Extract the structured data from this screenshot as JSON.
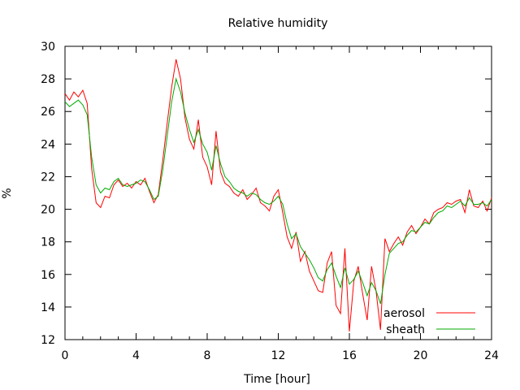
{
  "chart_data": {
    "type": "line",
    "title": "Relative humidity",
    "xlabel": "Time [hour]",
    "ylabel": "%",
    "xlim": [
      0,
      24
    ],
    "ylim": [
      12,
      30
    ],
    "xticks": [
      0,
      4,
      8,
      12,
      16,
      20,
      24
    ],
    "yticks": [
      12,
      14,
      16,
      18,
      20,
      22,
      24,
      26,
      28,
      30
    ],
    "grid": false,
    "legend_position": "bottom-right",
    "series": [
      {
        "name": "aerosol",
        "color": "#ff0000",
        "x": [
          0,
          0.25,
          0.5,
          0.75,
          1,
          1.25,
          1.5,
          1.75,
          2,
          2.25,
          2.5,
          2.75,
          3,
          3.25,
          3.5,
          3.75,
          4,
          4.25,
          4.5,
          4.75,
          5,
          5.25,
          5.5,
          5.75,
          6,
          6.25,
          6.5,
          6.75,
          7,
          7.25,
          7.5,
          7.75,
          8,
          8.25,
          8.5,
          8.75,
          9,
          9.25,
          9.5,
          9.75,
          10,
          10.25,
          10.5,
          10.75,
          11,
          11.25,
          11.5,
          11.75,
          12,
          12.25,
          12.5,
          12.75,
          13,
          13.25,
          13.5,
          13.75,
          14,
          14.25,
          14.5,
          14.75,
          15,
          15.25,
          15.5,
          15.75,
          16,
          16.25,
          16.5,
          16.75,
          17,
          17.25,
          17.5,
          17.75,
          18,
          18.25,
          18.5,
          18.75,
          19,
          19.25,
          19.5,
          19.75,
          20,
          20.25,
          20.5,
          20.75,
          21,
          21.25,
          21.5,
          21.75,
          22,
          22.25,
          22.5,
          22.75,
          23,
          23.25,
          23.5,
          23.75,
          24
        ],
        "y": [
          27.1,
          26.7,
          27.2,
          26.9,
          27.3,
          26.5,
          22.5,
          20.4,
          20.1,
          20.8,
          20.7,
          21.5,
          21.8,
          21.4,
          21.6,
          21.3,
          21.7,
          21.5,
          21.9,
          21.1,
          20.4,
          20.9,
          23.0,
          25.3,
          27.5,
          29.2,
          28.0,
          25.6,
          24.3,
          23.7,
          25.5,
          23.2,
          22.6,
          21.5,
          24.8,
          22.3,
          21.6,
          21.4,
          21.0,
          20.8,
          21.2,
          20.6,
          20.9,
          21.3,
          20.4,
          20.2,
          19.9,
          20.8,
          21.2,
          19.8,
          18.3,
          17.6,
          18.6,
          16.8,
          17.4,
          16.2,
          15.6,
          15.0,
          14.9,
          16.7,
          17.4,
          14.1,
          13.6,
          17.6,
          12.5,
          15.6,
          16.5,
          14.8,
          13.2,
          16.5,
          15.0,
          12.6,
          18.2,
          17.4,
          17.9,
          18.3,
          17.8,
          18.6,
          19.0,
          18.5,
          18.9,
          19.4,
          19.1,
          19.8,
          20.0,
          20.1,
          20.4,
          20.3,
          20.5,
          20.6,
          19.8,
          21.2,
          20.2,
          20.1,
          20.5,
          19.9,
          20.7
        ]
      },
      {
        "name": "sheath",
        "color": "#00aa00",
        "x": [
          0,
          0.25,
          0.5,
          0.75,
          1,
          1.25,
          1.5,
          1.75,
          2,
          2.25,
          2.5,
          2.75,
          3,
          3.25,
          3.5,
          3.75,
          4,
          4.25,
          4.5,
          4.75,
          5,
          5.25,
          5.5,
          5.75,
          6,
          6.25,
          6.5,
          6.75,
          7,
          7.25,
          7.5,
          7.75,
          8,
          8.25,
          8.5,
          8.75,
          9,
          9.25,
          9.5,
          9.75,
          10,
          10.25,
          10.5,
          10.75,
          11,
          11.25,
          11.5,
          11.75,
          12,
          12.25,
          12.5,
          12.75,
          13,
          13.25,
          13.5,
          13.75,
          14,
          14.25,
          14.5,
          14.75,
          15,
          15.25,
          15.5,
          15.75,
          16,
          16.25,
          16.5,
          16.75,
          17,
          17.25,
          17.5,
          17.75,
          18,
          18.25,
          18.5,
          18.75,
          19,
          19.25,
          19.5,
          19.75,
          20,
          20.25,
          20.5,
          20.75,
          21,
          21.25,
          21.5,
          21.75,
          22,
          22.25,
          22.5,
          22.75,
          23,
          23.25,
          23.5,
          23.75,
          24
        ],
        "y": [
          26.6,
          26.3,
          26.5,
          26.7,
          26.4,
          25.8,
          23.2,
          21.5,
          21.0,
          21.3,
          21.2,
          21.7,
          21.9,
          21.5,
          21.4,
          21.5,
          21.6,
          21.8,
          21.7,
          21.2,
          20.6,
          20.8,
          22.4,
          24.5,
          26.6,
          28.0,
          27.2,
          25.9,
          24.9,
          24.1,
          24.9,
          24.0,
          23.5,
          22.4,
          23.9,
          22.8,
          22.0,
          21.7,
          21.3,
          21.1,
          21.0,
          20.8,
          21.0,
          20.9,
          20.6,
          20.4,
          20.3,
          20.5,
          20.8,
          20.3,
          19.1,
          18.2,
          18.5,
          17.7,
          17.3,
          16.9,
          16.4,
          15.8,
          15.6,
          16.3,
          16.7,
          15.9,
          15.2,
          16.4,
          15.4,
          15.7,
          16.2,
          15.5,
          14.7,
          15.5,
          15.0,
          14.2,
          16.0,
          17.3,
          17.6,
          17.9,
          18.0,
          18.4,
          18.7,
          18.6,
          18.9,
          19.2,
          19.1,
          19.5,
          19.8,
          19.9,
          20.2,
          20.1,
          20.3,
          20.5,
          20.2,
          20.7,
          20.3,
          20.3,
          20.4,
          20.2,
          20.6
        ]
      }
    ]
  }
}
